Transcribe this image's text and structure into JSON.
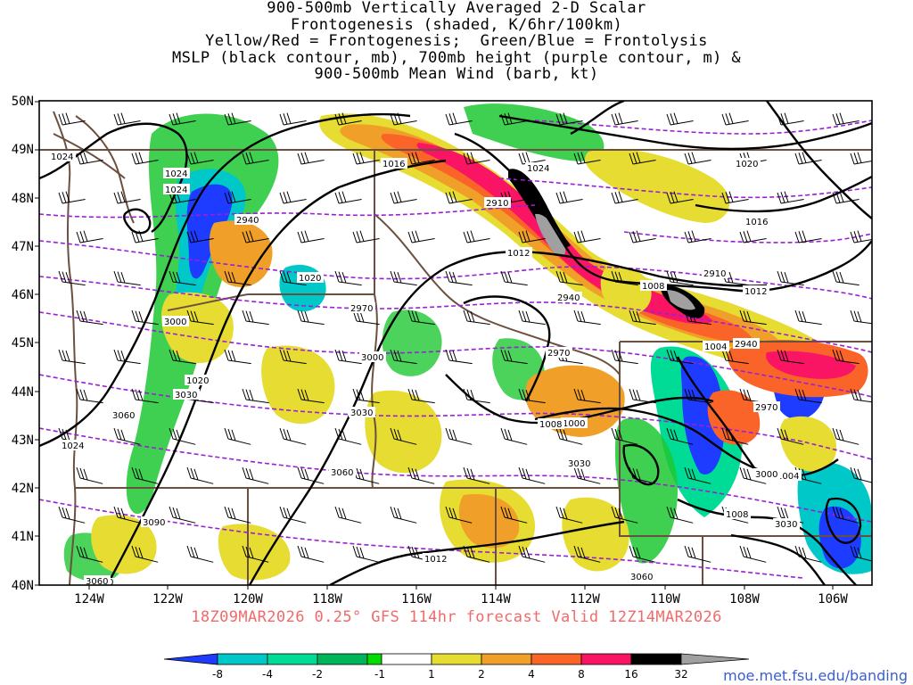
{
  "title_lines": [
    "900-500mb Vertically Averaged 2-D Scalar",
    "Frontogenesis (shaded, K/6hr/100km)",
    "Yellow/Red = Frontogenesis;  Green/Blue = Frontolysis",
    "MSLP (black contour, mb), 700mb height (purple contour, m) &",
    "900-500mb Mean Wind (barb, kt)"
  ],
  "valid_line": "18Z09MAR2026 0.25° GFS 114hr forecast Valid 12Z14MAR2026",
  "credit": "moe.met.fsu.edu/banding",
  "lat_labels": [
    "50N",
    "49N",
    "48N",
    "47N",
    "46N",
    "45N",
    "44N",
    "43N",
    "42N",
    "41N",
    "40N"
  ],
  "lon_labels": [
    "124W",
    "122W",
    "120W",
    "118W",
    "116W",
    "114W",
    "112W",
    "110W",
    "108W",
    "106W"
  ],
  "colorbar": {
    "labels": [
      "-8",
      "-4",
      "-2",
      "-1",
      "1",
      "2",
      "4",
      "8",
      "16",
      "32"
    ],
    "colors": [
      "#1e3cff",
      "#00c8c8",
      "#00dc96",
      "#00b45a",
      "#00dc00",
      "#ffffff",
      "#e6dc32",
      "#f0a028",
      "#fa6428",
      "#fa1464",
      "#000000",
      "#a0a0a0"
    ]
  },
  "mslp_labels": [
    "1024",
    "1024",
    "1024",
    "1016",
    "1024",
    "1012",
    "1008",
    "1012",
    "1020",
    "1016",
    "1020",
    "1020",
    "1004",
    "1000",
    "1008",
    "1004",
    "1008",
    "1012",
    "1020",
    "1024"
  ],
  "height_labels": [
    "2940",
    "2910",
    "2940",
    "2910",
    "2940",
    "2970",
    "2970",
    "3000",
    "2970",
    "3000",
    "3030",
    "3030",
    "3060",
    "3060",
    "3090",
    "3000",
    "3030",
    "3030",
    "3060",
    "3060"
  ],
  "colors": {
    "mslp_contour": "#000000",
    "height_contour": "#9b1fd6",
    "borders": "#6b5040",
    "valid_text": "#f06a6a",
    "credit_text": "#3a5fcd"
  }
}
